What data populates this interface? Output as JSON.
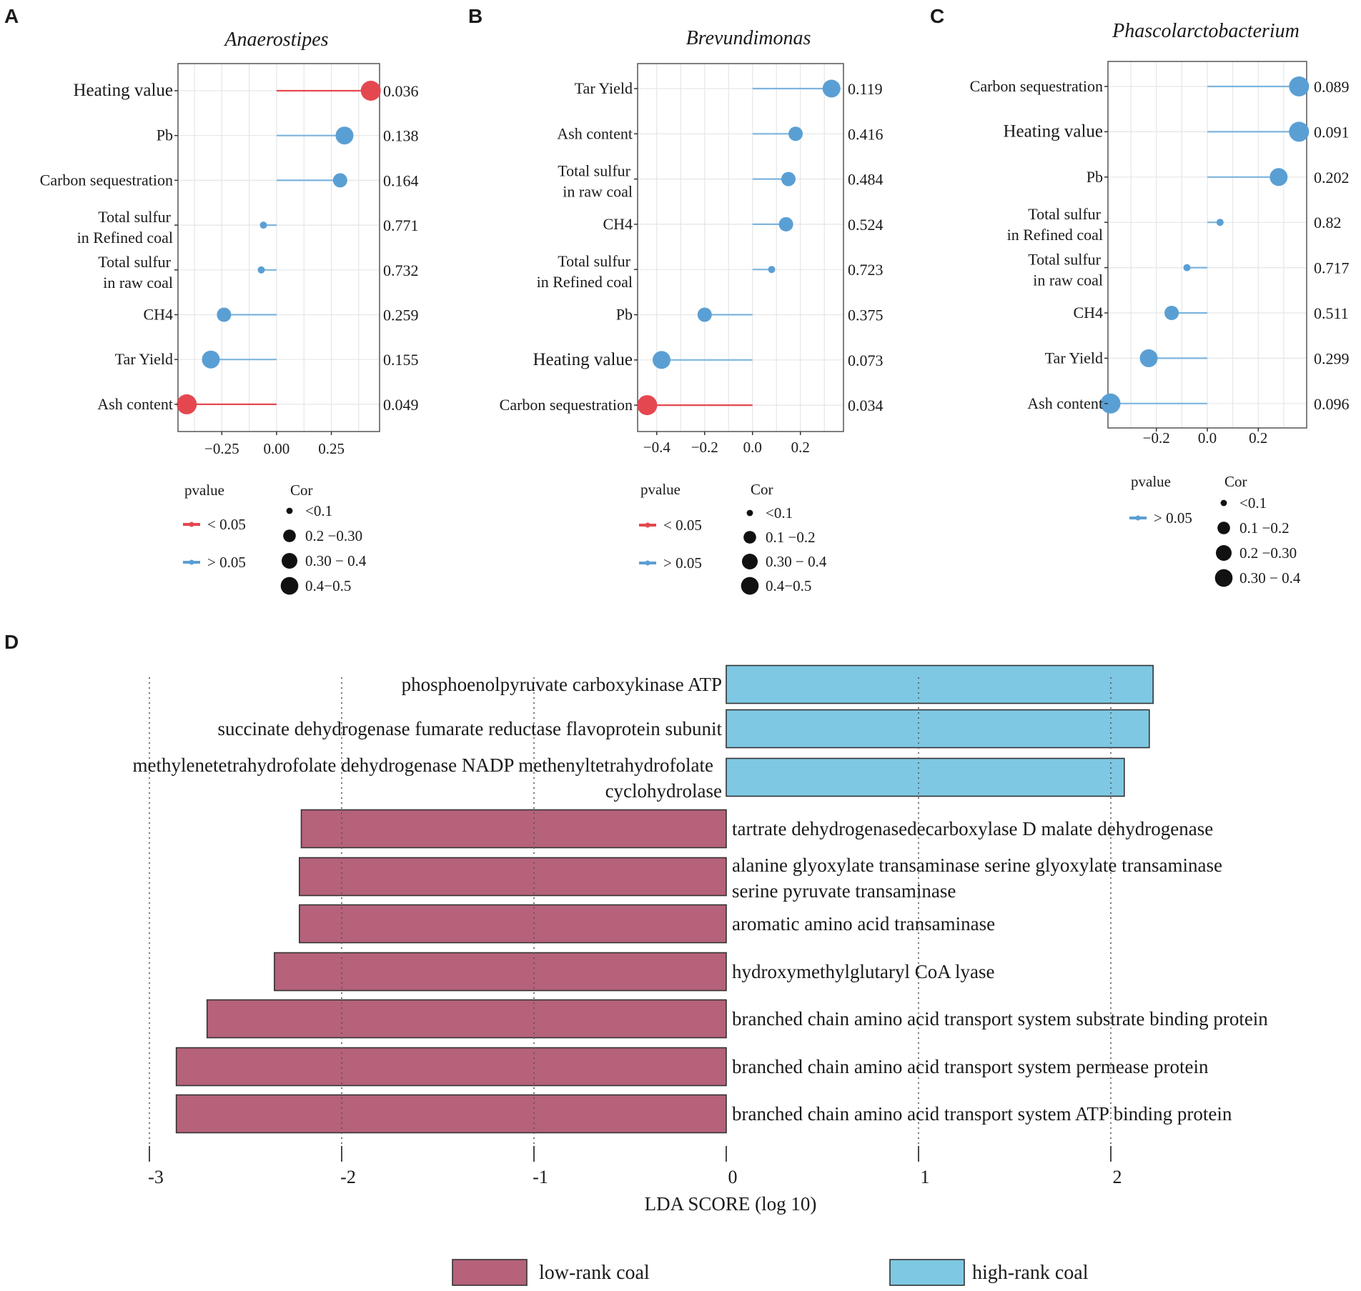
{
  "colors": {
    "sig": "#E5474F",
    "nonsig": "#5A9FD4",
    "nonsig_line": "#7DB4DE",
    "low_rank": "#B5627A",
    "high_rank": "#7EC8E3",
    "grid": "#E6E6E6",
    "panel_border": "#555555",
    "text": "#1a1a1a"
  },
  "panel_labels": [
    "A",
    "B",
    "C",
    "D"
  ],
  "legend_common": {
    "pvalue_title": "pvalue",
    "cor_title": "Cor",
    "sig_label": "< 0.05",
    "nonsig_label": "> 0.05"
  },
  "chart_data": [
    {
      "type": "lollipop",
      "panel": "A",
      "title": "Anaerostipes",
      "x_ticks": [
        -0.25,
        0.0,
        0.25
      ],
      "x_tick_labels": [
        "-0.25",
        "0.00",
        "0.25"
      ],
      "xlim": [
        -0.45,
        0.47
      ],
      "rows": [
        {
          "label": [
            "Heating value"
          ],
          "large": true,
          "value": 0.43,
          "pvalue": "0.036",
          "sig": true,
          "size": 4
        },
        {
          "label": [
            "Pb"
          ],
          "large": false,
          "value": 0.31,
          "pvalue": "0.138",
          "sig": false,
          "size": 3
        },
        {
          "label": [
            "Carbon sequestration"
          ],
          "large": false,
          "value": 0.29,
          "pvalue": "0.164",
          "sig": false,
          "size": 2
        },
        {
          "label": [
            "Total sulfur",
            "in Refined coal"
          ],
          "large": false,
          "value": -0.06,
          "pvalue": "0.771",
          "sig": false,
          "size": 1
        },
        {
          "label": [
            "Total sulfur",
            "in raw coal"
          ],
          "large": false,
          "value": -0.07,
          "pvalue": "0.732",
          "sig": false,
          "size": 1
        },
        {
          "label": [
            "CH4"
          ],
          "large": false,
          "value": -0.24,
          "pvalue": "0.259",
          "sig": false,
          "size": 2
        },
        {
          "label": [
            "Tar Yield"
          ],
          "large": false,
          "value": -0.3,
          "pvalue": "0.155",
          "sig": false,
          "size": 3
        },
        {
          "label": [
            "Ash content"
          ],
          "large": false,
          "value": -0.41,
          "pvalue": "0.049",
          "sig": true,
          "size": 4
        }
      ],
      "legend": {
        "pvalue": [
          "sig",
          "nonsig"
        ],
        "cor": [
          {
            "label": "<0.1",
            "size": 1
          },
          {
            "label": "0.2 −0.30",
            "size": 2
          },
          {
            "label": "0.30 − 0.4",
            "size": 3
          },
          {
            "label": "0.4−0.5",
            "size": 4
          }
        ]
      }
    },
    {
      "type": "lollipop",
      "panel": "B",
      "title": "Brevundimonas",
      "x_ticks": [
        -0.4,
        -0.2,
        0.0,
        0.2
      ],
      "x_tick_labels": [
        "-0.4",
        "-0.2",
        "0.0",
        "0.2"
      ],
      "xlim": [
        -0.48,
        0.38
      ],
      "rows": [
        {
          "label": [
            "Tar Yield"
          ],
          "large": false,
          "value": 0.33,
          "pvalue": "0.119",
          "sig": false,
          "size": 3
        },
        {
          "label": [
            "Ash content"
          ],
          "large": false,
          "value": 0.18,
          "pvalue": "0.416",
          "sig": false,
          "size": 2
        },
        {
          "label": [
            "Total sulfur",
            "in raw coal"
          ],
          "large": false,
          "value": 0.15,
          "pvalue": "0.484",
          "sig": false,
          "size": 2
        },
        {
          "label": [
            "CH4"
          ],
          "large": false,
          "value": 0.14,
          "pvalue": "0.524",
          "sig": false,
          "size": 2
        },
        {
          "label": [
            "Total sulfur",
            "in Refined coal"
          ],
          "large": false,
          "value": 0.08,
          "pvalue": "0.723",
          "sig": false,
          "size": 1
        },
        {
          "label": [
            "Pb"
          ],
          "large": false,
          "value": -0.2,
          "pvalue": "0.375",
          "sig": false,
          "size": 2
        },
        {
          "label": [
            "Heating value"
          ],
          "large": true,
          "value": -0.38,
          "pvalue": "0.073",
          "sig": false,
          "size": 3
        },
        {
          "label": [
            "Carbon sequestration"
          ],
          "large": false,
          "value": -0.44,
          "pvalue": "0.034",
          "sig": true,
          "size": 4
        }
      ],
      "legend": {
        "pvalue": [
          "sig",
          "nonsig"
        ],
        "cor": [
          {
            "label": "<0.1",
            "size": 1
          },
          {
            "label": "0.1 −0.2",
            "size": 2
          },
          {
            "label": "0.30 − 0.4",
            "size": 3
          },
          {
            "label": "0.4−0.5",
            "size": 4
          }
        ]
      }
    },
    {
      "type": "lollipop",
      "panel": "C",
      "title": "Phascolarctobacterium",
      "x_ticks": [
        -0.2,
        0.0,
        0.2
      ],
      "x_tick_labels": [
        "-0.2",
        "0.0",
        "0.2"
      ],
      "xlim": [
        -0.39,
        0.39
      ],
      "rows": [
        {
          "label": [
            "Carbon sequestration"
          ],
          "large": false,
          "value": 0.36,
          "pvalue": "0.089",
          "sig": false,
          "size": 4
        },
        {
          "label": [
            "Heating value"
          ],
          "large": true,
          "value": 0.36,
          "pvalue": "0.091",
          "sig": false,
          "size": 4
        },
        {
          "label": [
            "Pb"
          ],
          "large": false,
          "value": 0.28,
          "pvalue": "0.202",
          "sig": false,
          "size": 3
        },
        {
          "label": [
            "Total sulfur",
            "in Refined coal"
          ],
          "large": false,
          "value": 0.05,
          "pvalue": "0.82",
          "sig": false,
          "size": 1
        },
        {
          "label": [
            "Total sulfur",
            "in raw coal"
          ],
          "large": false,
          "value": -0.08,
          "pvalue": "0.717",
          "sig": false,
          "size": 1
        },
        {
          "label": [
            "CH4"
          ],
          "large": false,
          "value": -0.14,
          "pvalue": "0.511",
          "sig": false,
          "size": 2
        },
        {
          "label": [
            "Tar Yield"
          ],
          "large": false,
          "value": -0.23,
          "pvalue": "0.299",
          "sig": false,
          "size": 3
        },
        {
          "label": [
            "Ash content"
          ],
          "large": false,
          "value": -0.38,
          "pvalue": "0.096",
          "sig": false,
          "size": 4
        }
      ],
      "legend": {
        "pvalue": [
          "nonsig"
        ],
        "cor": [
          {
            "label": "<0.1",
            "size": 1
          },
          {
            "label": "0.1 −0.2",
            "size": 2
          },
          {
            "label": "0.2 −0.30",
            "size": 3
          },
          {
            "label": "0.30 − 0.4",
            "size": 4
          }
        ]
      }
    },
    {
      "type": "bar",
      "orientation": "horizontal",
      "panel": "D",
      "xlabel": "LDA SCORE (log 10)",
      "xlim": [
        -3,
        2.25
      ],
      "x_ticks": [
        -3,
        -2,
        -1,
        0,
        1,
        2
      ],
      "x_tick_labels": [
        "-3",
        "-2",
        "-1",
        "0",
        "1",
        "2"
      ],
      "bars": [
        {
          "label": [
            "phosphoenolpyruvate carboxykinase ATP"
          ],
          "value": 2.22,
          "group": "high"
        },
        {
          "label": [
            "succinate dehydrogenase fumarate reductase flavoprotein subunit"
          ],
          "value": 2.2,
          "group": "high"
        },
        {
          "label": [
            "methylenetetrahydrofolate dehydrogenase NADP methenyltetrahydrofolate",
            "cyclohydrolase"
          ],
          "value": 2.07,
          "group": "high"
        },
        {
          "label": [
            "tartrate dehydrogenasedecarboxylase D malate dehydrogenase"
          ],
          "value": -2.21,
          "group": "low"
        },
        {
          "label": [
            "alanine glyoxylate transaminase serine glyoxylate transaminase",
            "serine pyruvate transaminase"
          ],
          "value": -2.22,
          "group": "low"
        },
        {
          "label": [
            "aromatic amino acid transaminase"
          ],
          "value": -2.22,
          "group": "low"
        },
        {
          "label": [
            "hydroxymethylglutaryl CoA lyase"
          ],
          "value": -2.35,
          "group": "low"
        },
        {
          "label": [
            "branched chain amino acid transport system substrate binding protein"
          ],
          "value": -2.7,
          "group": "low"
        },
        {
          "label": [
            "branched chain amino acid transport system permease protein"
          ],
          "value": -2.86,
          "group": "low"
        },
        {
          "label": [
            "branched chain amino acid transport system ATP binding protein"
          ],
          "value": -2.86,
          "group": "low"
        }
      ],
      "legend": [
        {
          "label": "low-rank coal",
          "group": "low"
        },
        {
          "label": "high-rank coal",
          "group": "high"
        }
      ]
    }
  ]
}
